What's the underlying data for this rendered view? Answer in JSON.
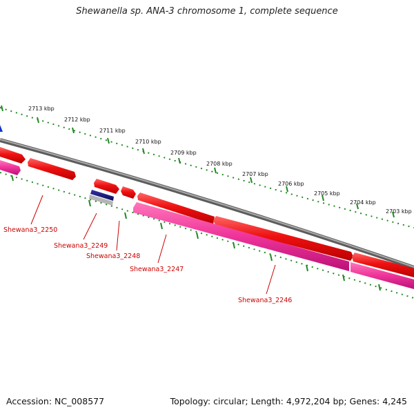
{
  "title": "Shewanella sp. ANA-3 chromosome 1, complete sequence",
  "footer": {
    "accession": "Accession: NC_008577",
    "topology": "Topology: circular; Length: 4,972,204 bp; Genes: 4,245"
  },
  "colors": {
    "forward_gene": "#ee1111",
    "reverse_gene": "#ee3399",
    "other_gene": "#1a1a8a",
    "backbone": "#888888",
    "ruler": "#228822",
    "label": "#cc0000"
  },
  "kbp_labels": [
    "2713 kbp",
    "2712 kbp",
    "2711 kbp",
    "2710 kbp",
    "2709 kbp",
    "2708 kbp",
    "2707 kbp",
    "2706 kbp",
    "2705 kbp",
    "2704 kbp",
    "2703 kbp"
  ],
  "gene_labels": [
    "Shewana3_2250",
    "Shewana3_2249",
    "Shewana3_2248",
    "Shewana3_2247",
    "Shewana3_2246"
  ]
}
